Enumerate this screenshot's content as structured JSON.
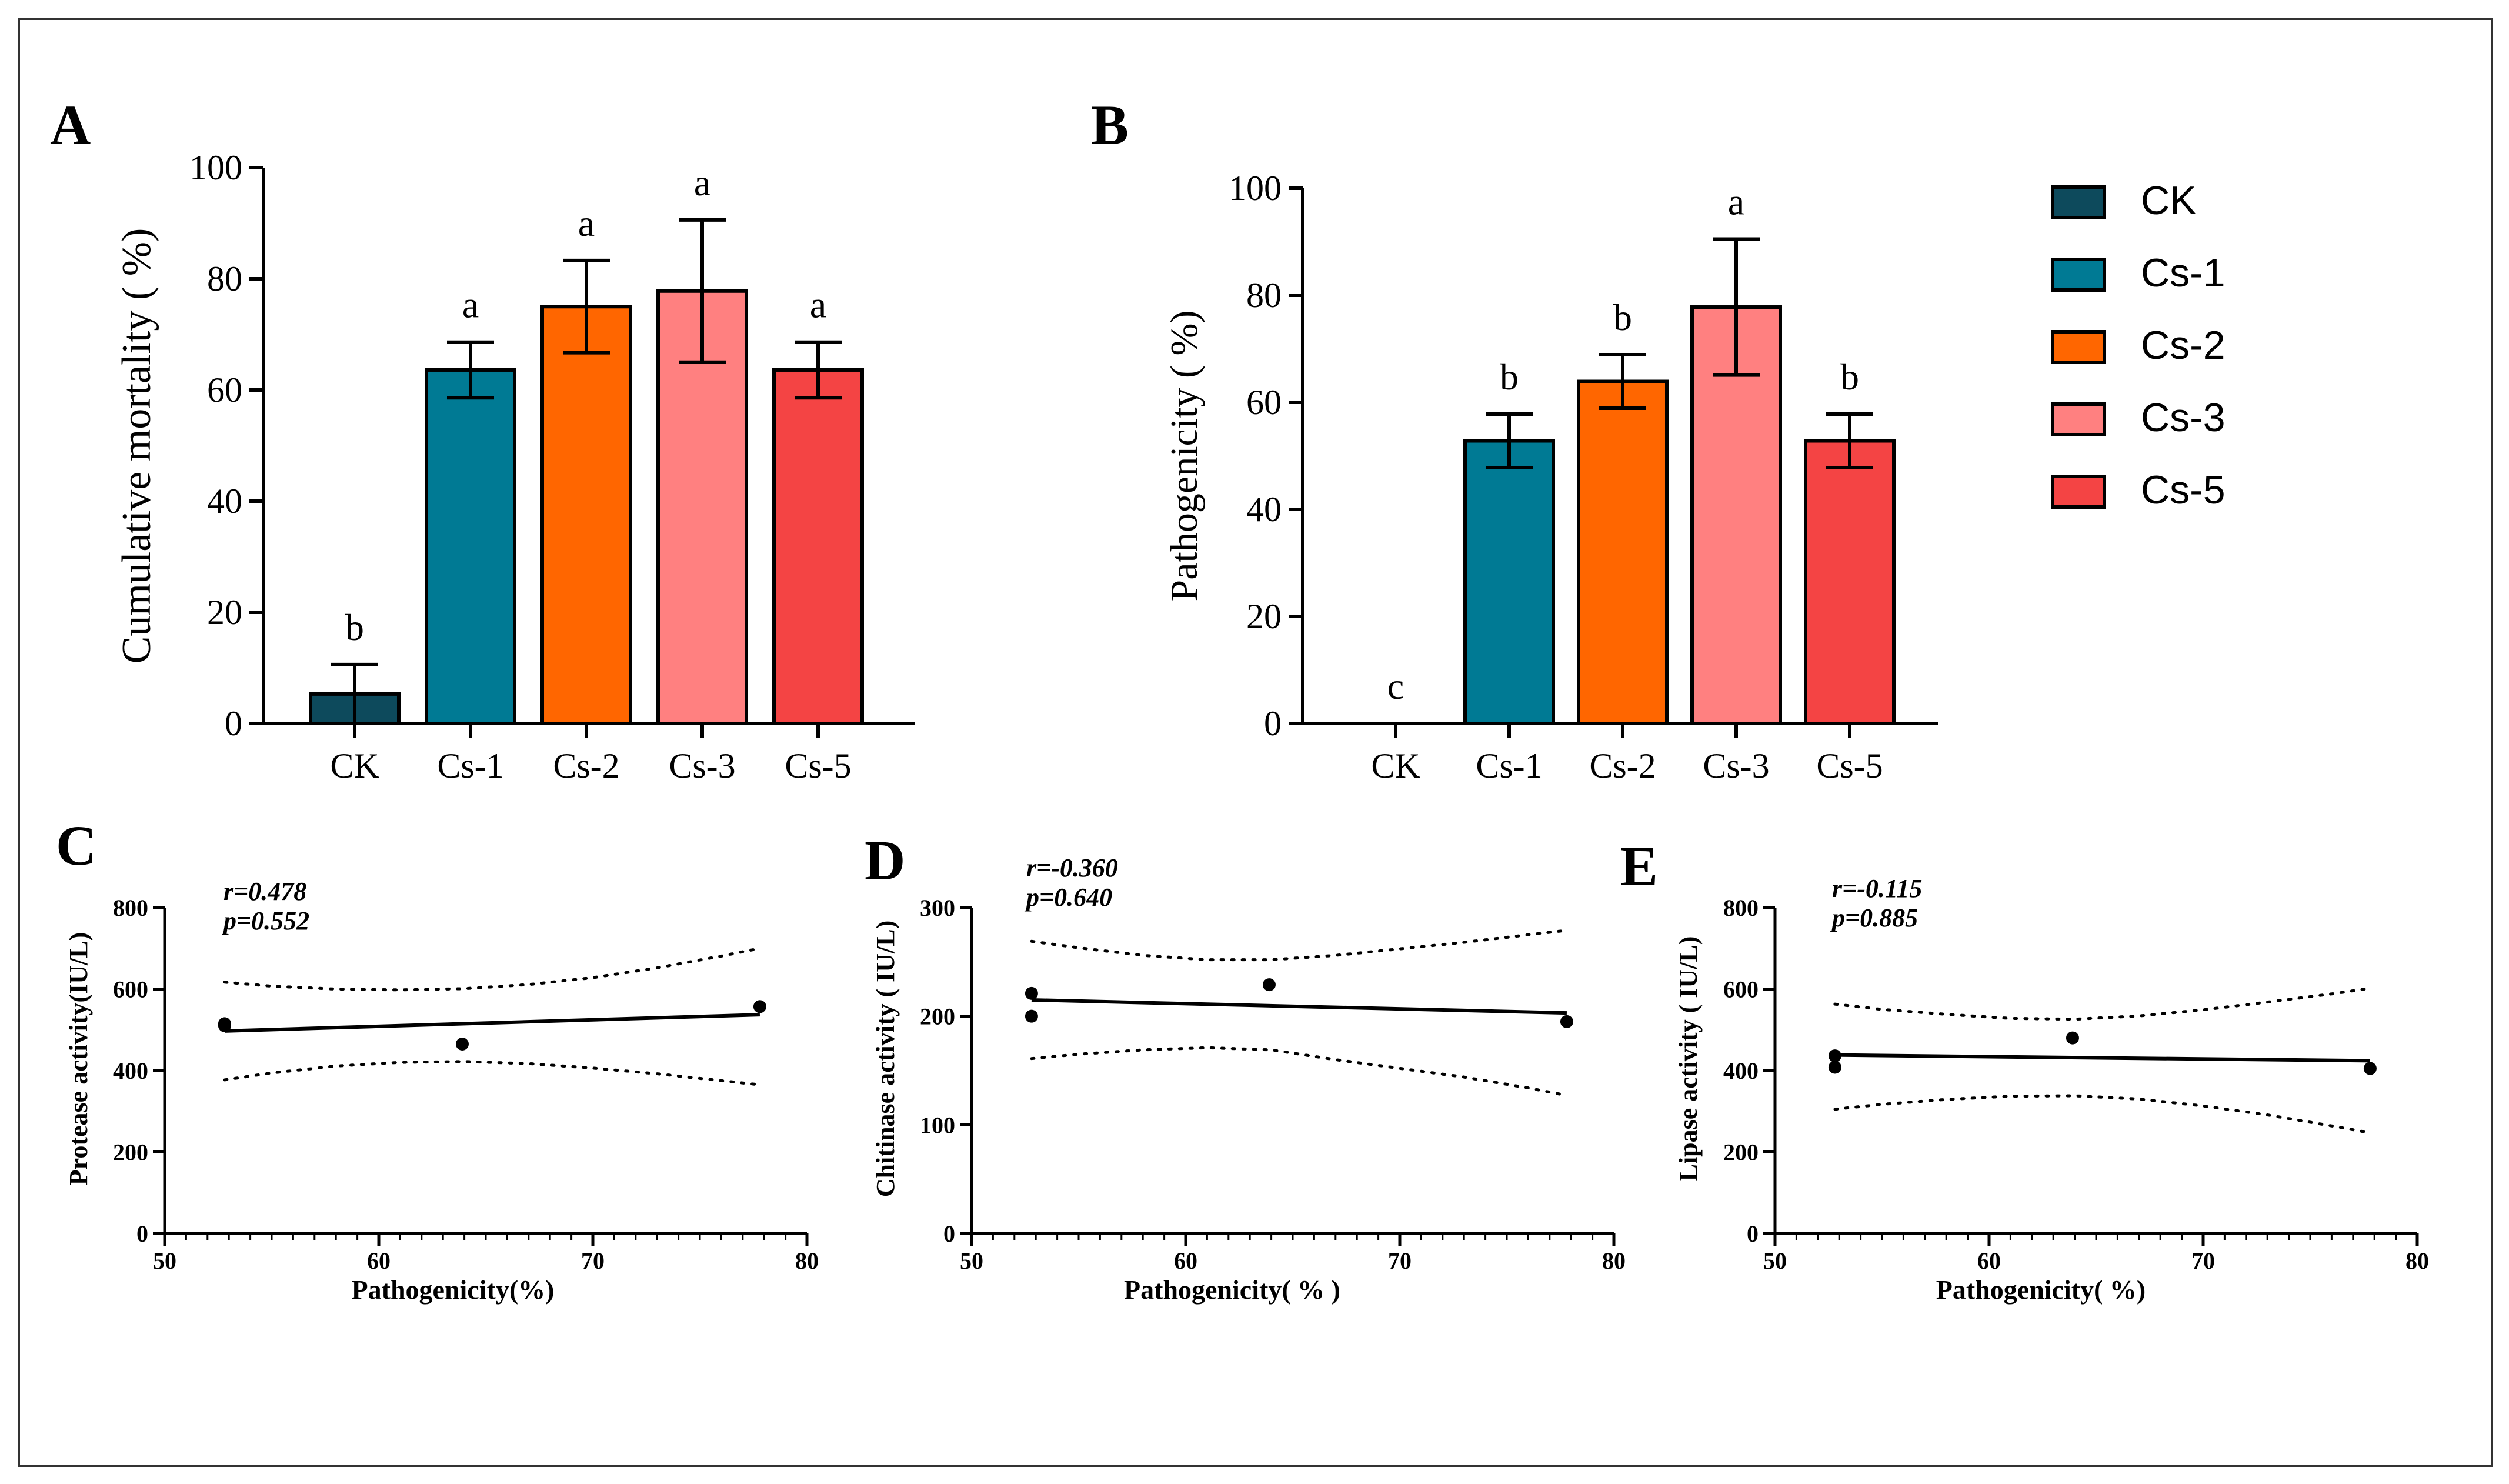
{
  "legend": [
    {
      "name": "CK",
      "color": "#0d4a5c"
    },
    {
      "name": "Cs-1",
      "color": "#007a94"
    },
    {
      "name": "Cs-2",
      "color": "#ff6600"
    },
    {
      "name": "Cs-3",
      "color": "#ff8080"
    },
    {
      "name": "Cs-5",
      "color": "#f44444"
    }
  ],
  "chart_data": [
    {
      "panel": "A",
      "type": "bar",
      "categories": [
        "CK",
        "Cs-1",
        "Cs-2",
        "Cs-3",
        "Cs-5"
      ],
      "values": [
        5.3,
        63.6,
        75,
        77.8,
        63.6
      ],
      "errors": [
        5.3,
        5,
        8.3,
        12.8,
        5
      ],
      "letters": [
        "b",
        "a",
        "a",
        "a",
        "a"
      ],
      "colors": [
        "#0d4a5c",
        "#007a94",
        "#ff6600",
        "#ff8080",
        "#f44444"
      ],
      "ylabel": "Cumulative mortality ( %)",
      "ylim": [
        0,
        100
      ],
      "yticks": [
        "0",
        "20",
        "40",
        "60",
        "80",
        "100"
      ]
    },
    {
      "panel": "B",
      "type": "bar",
      "categories": [
        "CK",
        "Cs-1",
        "Cs-2",
        "Cs-3",
        "Cs-5"
      ],
      "values": [
        0,
        52.8,
        63.9,
        77.8,
        52.8
      ],
      "errors": [
        0,
        5,
        5,
        12.7,
        5
      ],
      "letters": [
        "c",
        "b",
        "b",
        "a",
        "b"
      ],
      "colors": [
        "#0d4a5c",
        "#007a94",
        "#ff6600",
        "#ff8080",
        "#f44444"
      ],
      "ylabel": "Pathogenicity ( %)",
      "ylim": [
        0,
        100
      ],
      "yticks": [
        "0",
        "20",
        "40",
        "60",
        "80",
        "100"
      ]
    },
    {
      "panel": "C",
      "type": "scatter",
      "xlabel": "Pathogenicity(%)",
      "ylabel": "Protease activity(IU/L)",
      "xlim": [
        50,
        80
      ],
      "ylim": [
        0,
        800
      ],
      "xticks": [
        "50",
        "60",
        "70",
        "80"
      ],
      "yticks": [
        "0",
        "200",
        "400",
        "600",
        "800"
      ],
      "r_label": "r=0.478",
      "p_label": "p=0.552",
      "points": [
        [
          52.8,
          510
        ],
        [
          52.8,
          515
        ],
        [
          63.9,
          465
        ],
        [
          77.8,
          557
        ]
      ],
      "fit": [
        [
          52.8,
          497
        ],
        [
          77.8,
          537
        ]
      ],
      "ci_upper": [
        [
          52.8,
          617
        ],
        [
          55,
          607
        ],
        [
          58,
          600
        ],
        [
          61,
          598
        ],
        [
          64,
          601
        ],
        [
          67,
          611
        ],
        [
          70,
          628
        ],
        [
          73,
          652
        ],
        [
          76,
          681
        ],
        [
          77.8,
          700
        ]
      ],
      "ci_lower": [
        [
          52.8,
          377
        ],
        [
          55,
          394
        ],
        [
          58,
          411
        ],
        [
          61,
          420
        ],
        [
          64,
          422
        ],
        [
          67,
          417
        ],
        [
          70,
          406
        ],
        [
          73,
          392
        ],
        [
          76,
          375
        ],
        [
          77.8,
          365
        ]
      ]
    },
    {
      "panel": "D",
      "type": "scatter",
      "xlabel": "Pathogenicity(  %  )",
      "ylabel": "Chitinase activity ( IU/L)",
      "xlim": [
        50,
        80
      ],
      "ylim": [
        0,
        300
      ],
      "xticks": [
        "50",
        "60",
        "70",
        "80"
      ],
      "yticks": [
        "0",
        "100",
        "200",
        "300"
      ],
      "r_label": "r=-0.360",
      "p_label": "p=0.640",
      "points": [
        [
          52.8,
          221
        ],
        [
          52.8,
          200
        ],
        [
          63.9,
          229
        ],
        [
          77.8,
          195
        ]
      ],
      "fit": [
        [
          52.8,
          215
        ],
        [
          77.8,
          203
        ]
      ],
      "ci_upper": [
        [
          52.8,
          269
        ],
        [
          55,
          263
        ],
        [
          58,
          256
        ],
        [
          61,
          252
        ],
        [
          64,
          252
        ],
        [
          67,
          256
        ],
        [
          70,
          262
        ],
        [
          73,
          268
        ],
        [
          76,
          275
        ],
        [
          77.8,
          279
        ]
      ],
      "ci_lower": [
        [
          52.8,
          161
        ],
        [
          55,
          165
        ],
        [
          58,
          169
        ],
        [
          61,
          171
        ],
        [
          64,
          169
        ],
        [
          67,
          160
        ],
        [
          70,
          152
        ],
        [
          73,
          144
        ],
        [
          76,
          134
        ],
        [
          77.8,
          127
        ]
      ]
    },
    {
      "panel": "E",
      "type": "scatter",
      "xlabel": "Pathogenicity(  %)",
      "ylabel": "Lipase activity ( IU/L)",
      "xlim": [
        50,
        80
      ],
      "ylim": [
        0,
        800
      ],
      "xticks": [
        "50",
        "60",
        "70",
        "80"
      ],
      "yticks": [
        "0",
        "200",
        "400",
        "600",
        "800"
      ],
      "r_label": "r=-0.115",
      "p_label": "p=0.885",
      "points": [
        [
          52.8,
          436
        ],
        [
          52.8,
          408
        ],
        [
          63.9,
          480
        ],
        [
          77.8,
          405
        ]
      ],
      "fit": [
        [
          52.8,
          438
        ],
        [
          77.8,
          424
        ]
      ],
      "ci_upper": [
        [
          52.8,
          563
        ],
        [
          55,
          550
        ],
        [
          58,
          538
        ],
        [
          61,
          528
        ],
        [
          64,
          526
        ],
        [
          67,
          534
        ],
        [
          70,
          549
        ],
        [
          73,
          568
        ],
        [
          76,
          588
        ],
        [
          77.8,
          602
        ]
      ],
      "ci_lower": [
        [
          52.8,
          305
        ],
        [
          55,
          317
        ],
        [
          58,
          329
        ],
        [
          61,
          337
        ],
        [
          64,
          338
        ],
        [
          67,
          330
        ],
        [
          70,
          313
        ],
        [
          73,
          291
        ],
        [
          76,
          264
        ],
        [
          77.8,
          247
        ]
      ]
    }
  ]
}
